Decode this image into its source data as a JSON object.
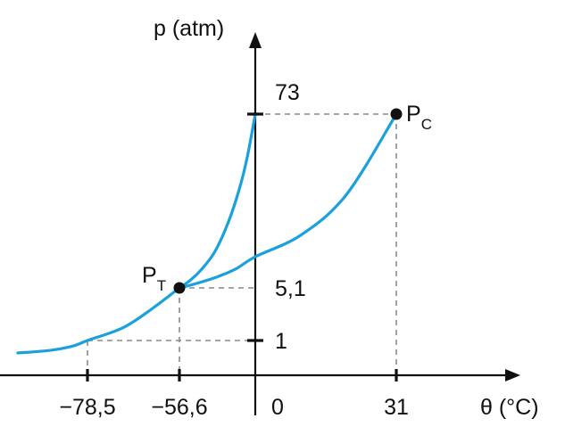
{
  "chart_data": {
    "type": "line",
    "title": "",
    "xlabel": "θ (°C)",
    "ylabel": "p (atm)",
    "x_ticks": [
      {
        "value": -78.5,
        "label": "−78,5"
      },
      {
        "value": -56.6,
        "label": "−56,6"
      },
      {
        "value": 0,
        "label": "0"
      },
      {
        "value": 31,
        "label": "31"
      }
    ],
    "y_ticks": [
      {
        "value": 1,
        "label": "1"
      },
      {
        "value": 5.1,
        "label": "5,1"
      },
      {
        "value": 73,
        "label": "73"
      }
    ],
    "points": [
      {
        "name": "P",
        "subscript": "T",
        "x": -56.6,
        "y": 5.1
      },
      {
        "name": "P",
        "subscript": "C",
        "x": 31,
        "y": 73
      }
    ],
    "series": [
      {
        "x": [
          -56.6,
          -48,
          -40,
          -30,
          -20,
          -12,
          -6,
          0
        ],
        "y": [
          5.1,
          9,
          14,
          22,
          33,
          45,
          57,
          73
        ]
      },
      {
        "x": [
          -56.6,
          -45,
          -30,
          -15,
          0,
          10,
          20,
          31
        ],
        "y": [
          5.1,
          7,
          10,
          14,
          20,
          28,
          43,
          73
        ]
      },
      {
        "x": [
          -110,
          -95,
          -85,
          -78.5,
          -70,
          -63,
          -56.6
        ],
        "y": [
          0.1,
          0.3,
          0.6,
          1,
          2,
          3.5,
          5.1
        ]
      }
    ],
    "grid": false,
    "legend": "none"
  },
  "colors": {
    "curve": "#1aa0dc",
    "axis": "#111111",
    "guide": "#8a8a8a"
  }
}
